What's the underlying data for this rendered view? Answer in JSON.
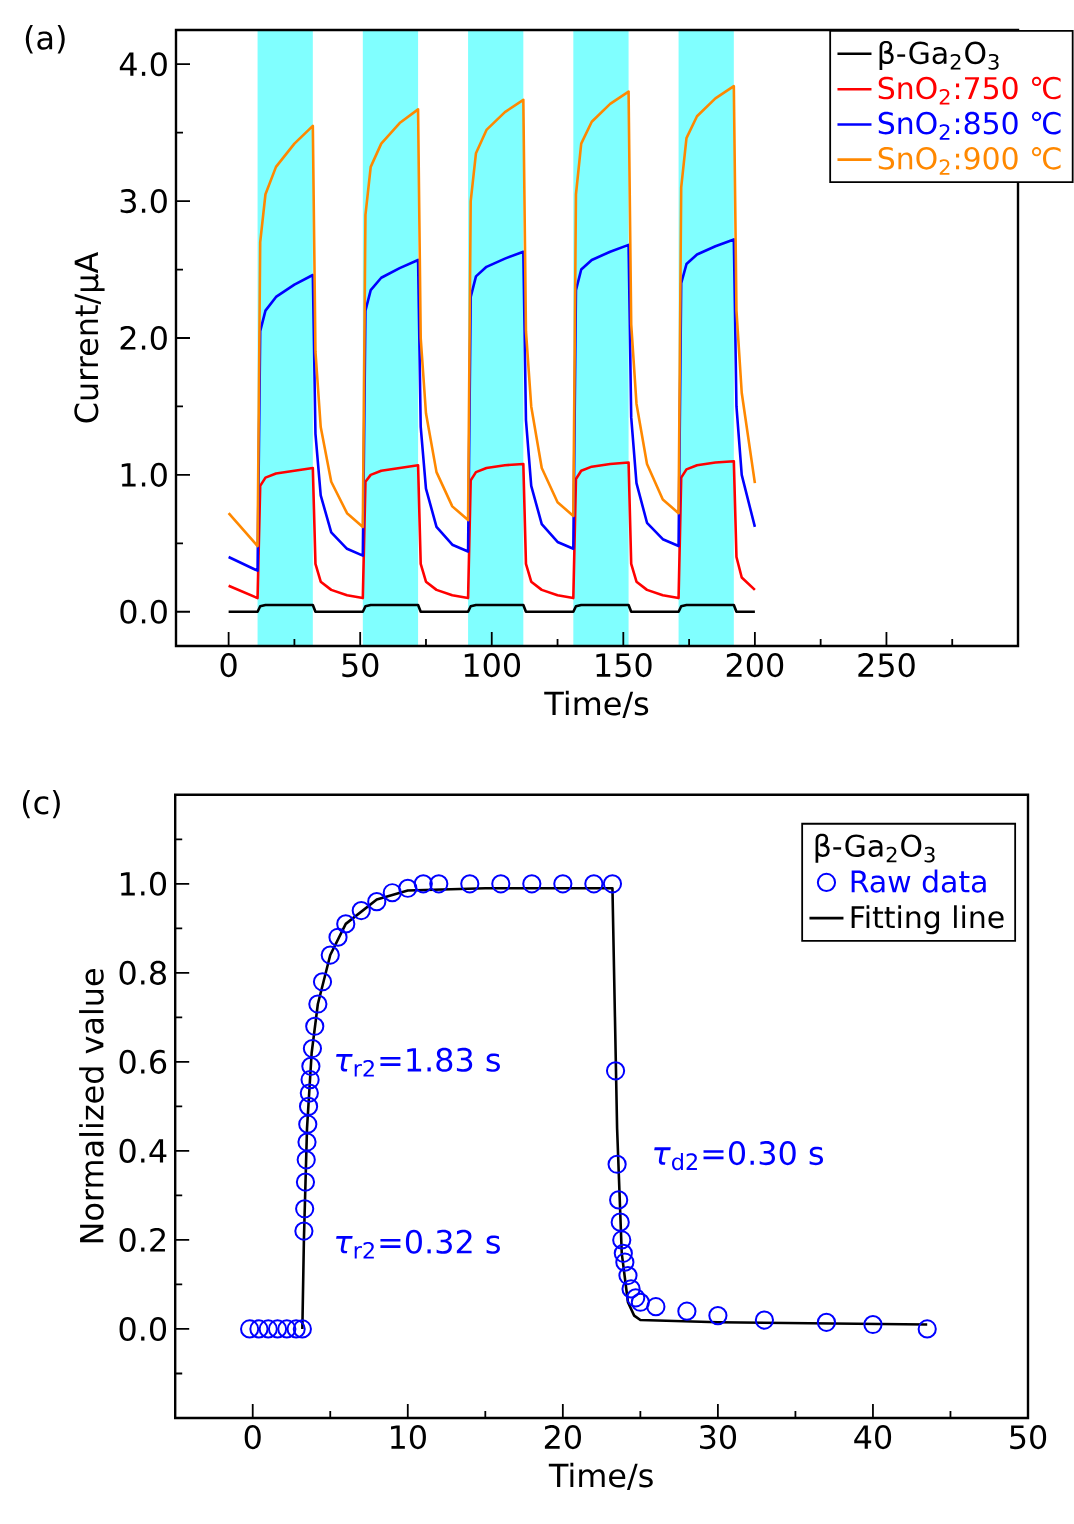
{
  "chart_data": [
    {
      "type": "line",
      "title": "(a)",
      "xlabel": "Time/s",
      "ylabel": "Current/μA",
      "xlim": [
        -20,
        300
      ],
      "ylim": [
        -0.25,
        4.25
      ],
      "xticks": [
        0,
        {
          "value": 25,
          "label": null
        },
        50,
        {
          "value": 75,
          "label": null
        },
        100,
        {
          "value": 125,
          "label": null
        },
        150,
        {
          "value": 175,
          "label": null
        },
        200,
        {
          "value": 225,
          "label": null
        },
        250,
        {
          "value": 275,
          "label": null
        }
      ],
      "yticks": [
        {
          "value": 0,
          "label": "0.0"
        },
        {
          "value": 0.5,
          "label": null
        },
        {
          "value": 1,
          "label": "1.0"
        },
        {
          "value": 1.5,
          "label": null
        },
        {
          "value": 2,
          "label": "2.0"
        },
        {
          "value": 2.5,
          "label": null
        },
        {
          "value": 3,
          "label": "3.0"
        },
        {
          "value": 3.5,
          "label": null
        },
        {
          "value": 4,
          "label": "4.0"
        }
      ],
      "legend": "top right",
      "bands": [
        {
          "axis": "x",
          "from": 11,
          "to": 32,
          "color": "#80ffff"
        },
        {
          "axis": "x",
          "from": 51,
          "to": 72,
          "color": "#80ffff"
        },
        {
          "axis": "x",
          "from": 91,
          "to": 112,
          "color": "#80ffff"
        },
        {
          "axis": "x",
          "from": 131,
          "to": 152,
          "color": "#80ffff"
        },
        {
          "axis": "x",
          "from": 171,
          "to": 192,
          "color": "#80ffff"
        }
      ],
      "x": [
        0,
        11,
        12,
        14,
        18,
        25,
        32,
        33,
        35,
        39,
        45,
        51,
        52,
        54,
        58,
        65,
        72,
        73,
        75,
        79,
        85,
        91,
        92,
        94,
        98,
        105,
        112,
        113,
        115,
        119,
        125,
        131,
        132,
        134,
        138,
        145,
        152,
        153,
        155,
        159,
        165,
        171,
        172,
        174,
        178,
        185,
        192,
        193,
        195,
        200
      ],
      "series": [
        {
          "name": "β-Ga$_{2}$O$_{3}$",
          "color": "#000000",
          "values": [
            0,
            0,
            0.04,
            0.05,
            0.05,
            0.05,
            0.05,
            0,
            0,
            0,
            0,
            0,
            0.04,
            0.05,
            0.05,
            0.05,
            0.05,
            0,
            0,
            0,
            0,
            0,
            0.04,
            0.05,
            0.05,
            0.05,
            0.05,
            0,
            0,
            0,
            0,
            0,
            0.04,
            0.05,
            0.05,
            0.05,
            0.05,
            0,
            0,
            0,
            0,
            0,
            0.04,
            0.05,
            0.05,
            0.05,
            0.05,
            0,
            0,
            0
          ]
        },
        {
          "name": "SnO$_{2}$:750 ℃",
          "color": "#ff0000",
          "values": [
            0.19,
            0.1,
            0.92,
            0.98,
            1.01,
            1.03,
            1.05,
            0.35,
            0.22,
            0.16,
            0.12,
            0.1,
            0.95,
            1.0,
            1.03,
            1.05,
            1.07,
            0.35,
            0.22,
            0.16,
            0.12,
            0.1,
            0.96,
            1.02,
            1.05,
            1.07,
            1.08,
            0.35,
            0.22,
            0.16,
            0.12,
            0.1,
            0.97,
            1.03,
            1.06,
            1.08,
            1.09,
            0.35,
            0.22,
            0.16,
            0.12,
            0.1,
            0.98,
            1.04,
            1.07,
            1.09,
            1.1,
            0.4,
            0.25,
            0.16
          ]
        },
        {
          "name": "SnO$_{2}$:850 ℃",
          "color": "#0000ff",
          "values": [
            0.4,
            0.3,
            2.05,
            2.2,
            2.3,
            2.39,
            2.46,
            1.3,
            0.85,
            0.58,
            0.46,
            0.41,
            2.2,
            2.35,
            2.44,
            2.51,
            2.57,
            1.35,
            0.9,
            0.62,
            0.49,
            0.44,
            2.3,
            2.45,
            2.52,
            2.58,
            2.63,
            1.4,
            0.92,
            0.64,
            0.51,
            0.46,
            2.35,
            2.5,
            2.57,
            2.63,
            2.68,
            1.42,
            0.94,
            0.65,
            0.53,
            0.48,
            2.4,
            2.54,
            2.61,
            2.67,
            2.72,
            1.5,
            1.0,
            0.62
          ]
        },
        {
          "name": "SnO$_{2}$:900 ℃",
          "color": "#ff8800",
          "values": [
            0.72,
            0.48,
            2.7,
            3.05,
            3.25,
            3.42,
            3.55,
            1.9,
            1.35,
            0.95,
            0.72,
            0.62,
            2.9,
            3.25,
            3.42,
            3.57,
            3.67,
            2.0,
            1.45,
            1.02,
            0.77,
            0.67,
            3.0,
            3.35,
            3.52,
            3.65,
            3.74,
            2.05,
            1.5,
            1.05,
            0.8,
            0.7,
            3.05,
            3.42,
            3.58,
            3.71,
            3.8,
            2.1,
            1.52,
            1.08,
            0.82,
            0.72,
            3.1,
            3.46,
            3.62,
            3.75,
            3.84,
            2.2,
            1.6,
            0.94
          ]
        }
      ]
    },
    {
      "type": "scatter",
      "title": "(c)",
      "xlabel": "Time/s",
      "ylabel": "Normalized value",
      "xlim": [
        -5,
        50
      ],
      "ylim": [
        -0.2,
        1.2
      ],
      "xticks": [
        0,
        {
          "value": 5,
          "label": null
        },
        10,
        {
          "value": 15,
          "label": null
        },
        20,
        {
          "value": 25,
          "label": null
        },
        30,
        {
          "value": 35,
          "label": null
        },
        40,
        {
          "value": 45,
          "label": null
        },
        50
      ],
      "yticks": [
        {
          "value": -0.1,
          "label": null
        },
        {
          "value": 0,
          "label": "0.0"
        },
        {
          "value": 0.1,
          "label": null
        },
        {
          "value": 0.2,
          "label": "0.2"
        },
        {
          "value": 0.3,
          "label": null
        },
        {
          "value": 0.4,
          "label": "0.4"
        },
        {
          "value": 0.5,
          "label": null
        },
        {
          "value": 0.6,
          "label": "0.6"
        },
        {
          "value": 0.7,
          "label": null
        },
        {
          "value": 0.8,
          "label": "0.8"
        },
        {
          "value": 0.9,
          "label": null
        },
        {
          "value": 1.0,
          "label": "1.0"
        },
        {
          "value": 1.1,
          "label": null
        }
      ],
      "legend": "top right",
      "legend_title": "β-Ga$_{2}$O$_{3}$",
      "annotations": [
        "*τ*$_{r2}$=1.83 s",
        "*τ*$_{r2}$=0.32 s",
        "*τ*$_{d2}$=0.30 s"
      ],
      "series": [
        {
          "name": "Raw data",
          "type": "scatter",
          "marker": "circle",
          "color": "#0000ff",
          "x": [
            -0.2,
            0.4,
            1.0,
            1.6,
            2.2,
            2.8,
            3.2,
            3.3,
            3.35,
            3.4,
            3.45,
            3.5,
            3.55,
            3.6,
            3.65,
            3.7,
            3.75,
            3.85,
            4.0,
            4.2,
            4.5,
            5.0,
            5.5,
            6.0,
            7.0,
            8.0,
            9.0,
            10.0,
            11.0,
            12.0,
            14.0,
            16.0,
            18.0,
            20.0,
            22.0,
            23.2,
            23.4,
            23.5,
            23.6,
            23.7,
            23.8,
            23.9,
            24.0,
            24.2,
            24.4,
            24.7,
            25.0,
            26.0,
            28.0,
            30.0,
            33.0,
            37.0,
            40.0,
            43.5
          ],
          "values": [
            0,
            0,
            0,
            0,
            0,
            0,
            0,
            0.22,
            0.27,
            0.33,
            0.38,
            0.42,
            0.46,
            0.5,
            0.53,
            0.56,
            0.59,
            0.63,
            0.68,
            0.73,
            0.78,
            0.84,
            0.88,
            0.91,
            0.94,
            0.96,
            0.98,
            0.99,
            1.0,
            1.0,
            1.0,
            1.0,
            1.0,
            1.0,
            1.0,
            1.0,
            0.58,
            0.37,
            0.29,
            0.24,
            0.2,
            0.17,
            0.15,
            0.12,
            0.09,
            0.07,
            0.06,
            0.05,
            0.04,
            0.03,
            0.02,
            0.015,
            0.01,
            0
          ]
        },
        {
          "name": "Fitting line",
          "type": "line",
          "color": "#000000",
          "x": [
            3.2,
            3.3,
            3.5,
            3.8,
            4.2,
            5,
            6,
            8,
            10,
            15,
            23.2,
            23.5,
            23.8,
            24.2,
            24.6,
            25,
            30,
            43.5
          ],
          "values": [
            0,
            0.2,
            0.45,
            0.62,
            0.73,
            0.84,
            0.91,
            0.965,
            0.985,
            0.99,
            0.99,
            0.45,
            0.17,
            0.06,
            0.03,
            0.02,
            0.015,
            0.01
          ]
        }
      ]
    }
  ]
}
